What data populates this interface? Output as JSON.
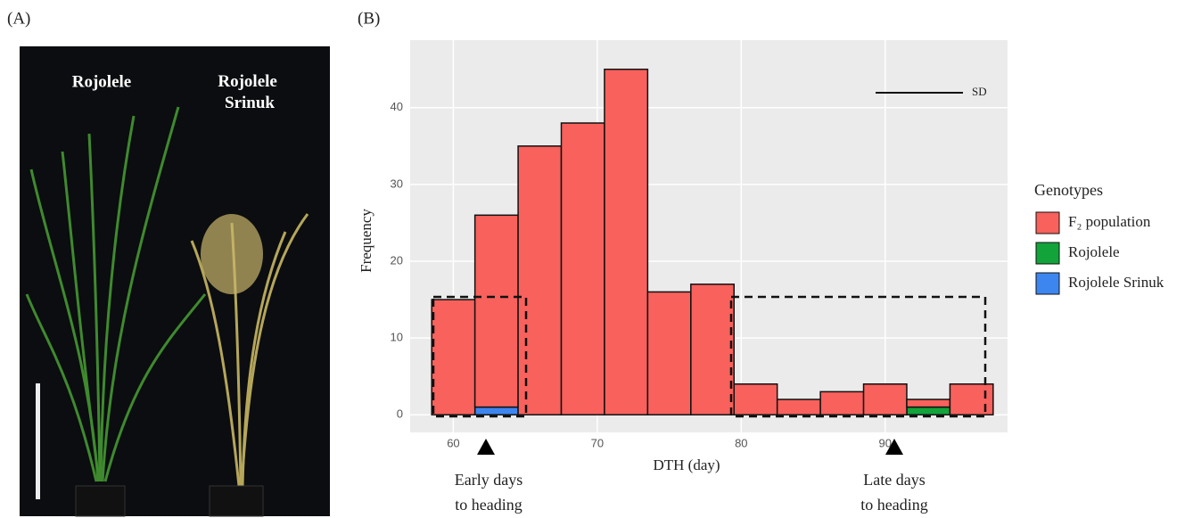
{
  "panel_a": {
    "label": "(A)",
    "left_plant": "Rojolele",
    "right_plant": "Rojolele Srinuk"
  },
  "chart_data": {
    "type": "histogram",
    "panel_label": "(B)",
    "x_label": "DTH (day)",
    "y_label": "Frequency",
    "bins": [
      58.5,
      61.5,
      64.5,
      67.5,
      70.5,
      73.5,
      76.5,
      79.5,
      82.5,
      85.5,
      88.5,
      91.5,
      94.5,
      97.5
    ],
    "series": [
      {
        "name": "Rojolele Srinuk",
        "color": "#3d86f0",
        "values": [
          0,
          1,
          0,
          0,
          0,
          0,
          0,
          0,
          0,
          0,
          0,
          0,
          0
        ]
      },
      {
        "name": "Rojolele",
        "color": "#12a33b",
        "values": [
          0,
          0,
          0,
          0,
          0,
          0,
          0,
          0,
          0,
          0,
          0,
          1,
          0
        ]
      },
      {
        "name": "F₂ population",
        "color": "#f8615c",
        "values": [
          15,
          25,
          35,
          38,
          45,
          16,
          17,
          4,
          2,
          3,
          4,
          1,
          4
        ]
      }
    ],
    "legend_order": [
      2,
      1,
      0
    ],
    "legend_title": "Genotypes",
    "xlim": [
      57,
      98.5
    ],
    "xticks": [
      60,
      70,
      80,
      90
    ],
    "ylim": [
      -2.3,
      48.8
    ],
    "yticks": [
      0,
      10,
      20,
      30,
      40
    ],
    "grid": true,
    "sd_label": "SD",
    "annotations": [
      "Early days",
      "to heading",
      "Late days",
      "to heading"
    ]
  }
}
